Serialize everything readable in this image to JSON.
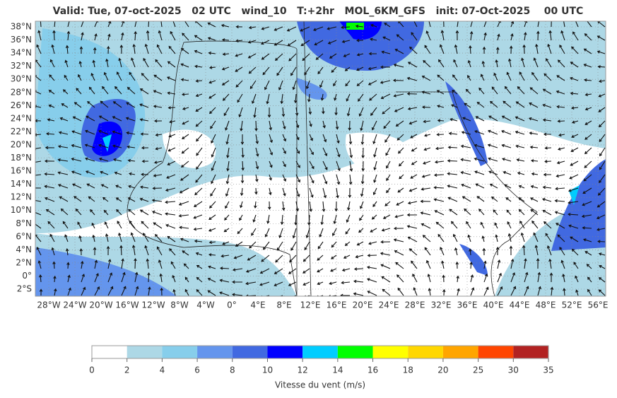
{
  "header": {
    "title": "Valid: Tue, 07-oct-2025   02 UTC   wind_10   T:+2hr   MOL_6KM_GFS   init: 07-Oct-2025    00 UTC"
  },
  "map": {
    "lat_labels": [
      "38°N",
      "36°N",
      "34°N",
      "32°N",
      "30°N",
      "28°N",
      "26°N",
      "24°N",
      "22°N",
      "20°N",
      "18°N",
      "16°N",
      "14°N",
      "12°N",
      "10°N",
      "8°N",
      "6°N",
      "4°N",
      "2°N",
      "0°",
      "2°S"
    ],
    "lon_labels": [
      "28°W",
      "24°W",
      "20°W",
      "16°W",
      "12°W",
      "8°W",
      "4°W",
      "0°",
      "4°E",
      "8°E",
      "12°E",
      "16°E",
      "20°E",
      "24°E",
      "28°E",
      "32°E",
      "36°E",
      "40°E",
      "44°E",
      "48°E",
      "52°E",
      "56°E"
    ]
  },
  "colorbar": {
    "ticks": [
      0,
      2,
      4,
      6,
      8,
      10,
      12,
      14,
      16,
      18,
      20,
      25,
      30,
      35
    ],
    "colors": [
      "#ffffff",
      "#add8e6",
      "#87ceeb",
      "#6495ed",
      "#4169e1",
      "#0000ff",
      "#00cdff",
      "#00ff00",
      "#ffff00",
      "#ffd700",
      "#ffa500",
      "#ff4500",
      "#b22222"
    ],
    "label": "Vitesse du vent (m/s)"
  }
}
